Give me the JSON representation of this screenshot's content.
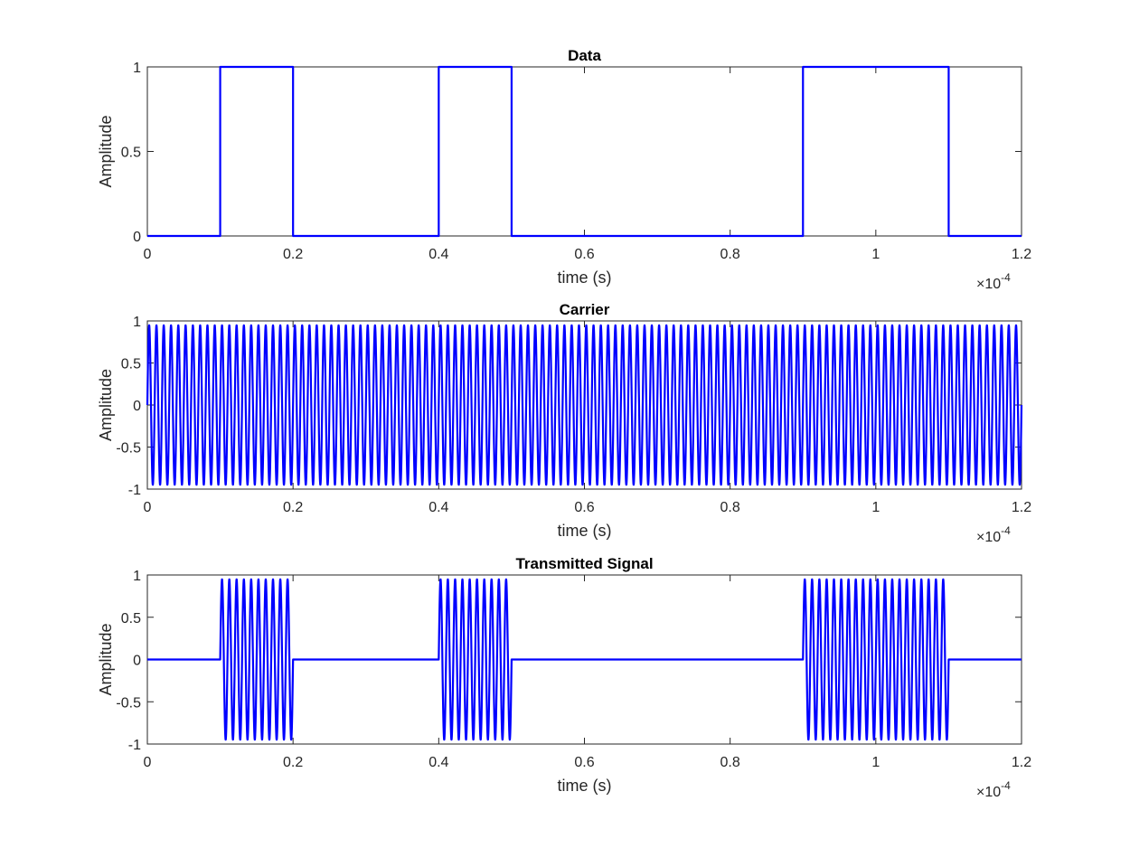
{
  "colors": {
    "series": "#0000ff",
    "axis": "#262626",
    "background": "#ffffff"
  },
  "chart_data": [
    {
      "type": "line",
      "title": "Data",
      "xlabel": "time (s)",
      "ylabel": "Amplitude",
      "x_exponent_label": "×10",
      "x_exponent": "-4",
      "xlim": [
        0,
        1.2
      ],
      "ylim": [
        0,
        1
      ],
      "xticks": [
        "0",
        "0.2",
        "0.4",
        "0.6",
        "0.8",
        "1",
        "1.2"
      ],
      "yticks": [
        "0",
        "0.5",
        "1"
      ],
      "grid": false,
      "series": [
        {
          "kind": "step",
          "bit_duration": 0.1,
          "bits": [
            0,
            1,
            0,
            0,
            1,
            0,
            0,
            0,
            0,
            1,
            1,
            0
          ]
        }
      ]
    },
    {
      "type": "line",
      "title": "Carrier",
      "xlabel": "time (s)",
      "ylabel": "Amplitude",
      "x_exponent_label": "×10",
      "x_exponent": "-4",
      "xlim": [
        0,
        1.2
      ],
      "ylim": [
        -1,
        1
      ],
      "xticks": [
        "0",
        "0.2",
        "0.4",
        "0.6",
        "0.8",
        "1",
        "1.2"
      ],
      "yticks": [
        "-1",
        "-0.5",
        "0",
        "0.5",
        "1"
      ],
      "grid": false,
      "series": [
        {
          "kind": "sine",
          "amplitude": 0.95,
          "cycles_per_unit": 100
        }
      ]
    },
    {
      "type": "line",
      "title": "Transmitted Signal",
      "xlabel": "time (s)",
      "ylabel": "Amplitude",
      "x_exponent_label": "×10",
      "x_exponent": "-4",
      "xlim": [
        0,
        1.2
      ],
      "ylim": [
        -1,
        1
      ],
      "xticks": [
        "0",
        "0.2",
        "0.4",
        "0.6",
        "0.8",
        "1",
        "1.2"
      ],
      "yticks": [
        "-1",
        "-0.5",
        "0",
        "0.5",
        "1"
      ],
      "grid": false,
      "series": [
        {
          "kind": "ook",
          "amplitude": 0.95,
          "cycles_per_unit": 100,
          "bit_duration": 0.1,
          "bits": [
            0,
            1,
            0,
            0,
            1,
            0,
            0,
            0,
            0,
            1,
            1,
            0
          ]
        }
      ]
    }
  ]
}
